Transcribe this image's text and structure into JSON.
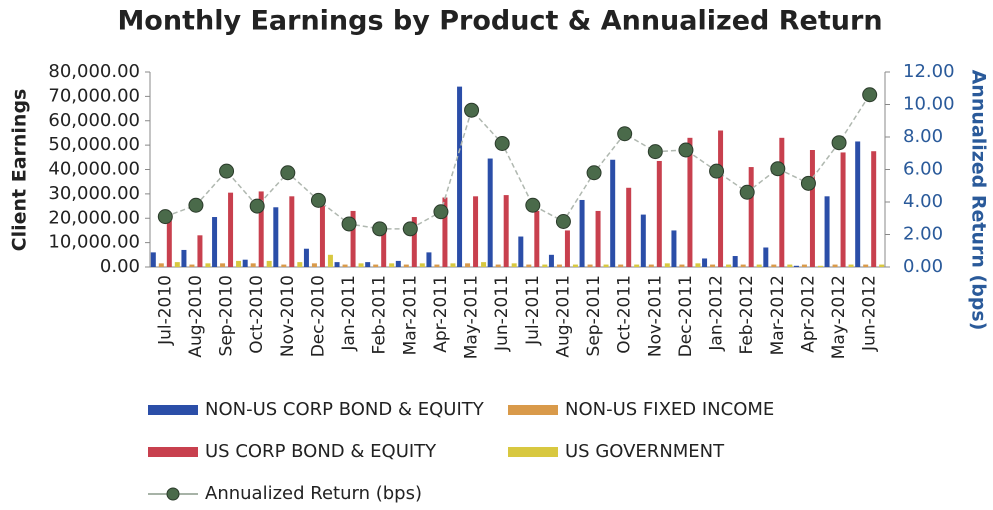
{
  "chart_data": {
    "type": "bar",
    "title": "Monthly Earnings by Product & Annualized Return",
    "y_label": "Client Earnings",
    "y2_label": "Annualized Return (bps)",
    "categories": [
      "Jul-2010",
      "Aug-2010",
      "Sep-2010",
      "Oct-2010",
      "Nov-2010",
      "Dec-2010",
      "Jan-2011",
      "Feb-2011",
      "Mar-2011",
      "Apr-2011",
      "May-2011",
      "Jun-2011",
      "Jul-2011",
      "Aug-2011",
      "Sep-2011",
      "Oct-2011",
      "Nov-2011",
      "Dec-2011",
      "Jan-2012",
      "Feb-2012",
      "Mar-2012",
      "Apr-2012",
      "May-2012",
      "Jun-2012"
    ],
    "series": [
      {
        "name": "NON-US CORP BOND & EQUITY",
        "color": "#2b4ea8",
        "values": [
          6000,
          7000,
          20500,
          3000,
          24500,
          7500,
          2000,
          2000,
          2500,
          6000,
          74000,
          44500,
          12500,
          5000,
          27500,
          44000,
          21500,
          15000,
          3500,
          4500,
          8000,
          500,
          29000,
          51500
        ]
      },
      {
        "name": "NON-US FIXED INCOME",
        "color": "#d99a4a",
        "values": [
          1500,
          1000,
          1500,
          1500,
          1000,
          1500,
          1000,
          1000,
          1000,
          1000,
          1500,
          1000,
          1000,
          1000,
          1000,
          1000,
          1000,
          1000,
          1000,
          1000,
          1000,
          1000,
          1000,
          1000
        ]
      },
      {
        "name": "US CORP BOND & EQUITY",
        "color": "#c8404e",
        "values": [
          19000,
          13000,
          30500,
          31000,
          29000,
          27000,
          23000,
          16000,
          20500,
          28500,
          29000,
          29500,
          23000,
          15000,
          23000,
          32500,
          43500,
          53000,
          56000,
          41000,
          53000,
          48000,
          47000,
          47500
        ]
      },
      {
        "name": "US GOVERNMENT",
        "color": "#d8c840",
        "values": [
          2000,
          1500,
          2500,
          2500,
          2000,
          5000,
          1500,
          1500,
          1500,
          1500,
          2000,
          1500,
          1000,
          1000,
          1000,
          1000,
          1500,
          1500,
          1000,
          1000,
          1000,
          500,
          1000,
          1000
        ]
      },
      {
        "name": "Annualized Return (bps)",
        "color": "#4a6a4a",
        "type": "line",
        "axis": "y2",
        "values": [
          3.1,
          3.8,
          5.9,
          3.75,
          5.8,
          4.1,
          2.65,
          2.35,
          2.35,
          3.4,
          9.65,
          7.6,
          3.8,
          2.8,
          5.8,
          8.2,
          7.1,
          7.2,
          5.9,
          4.6,
          6.05,
          5.15,
          7.65,
          10.6
        ]
      }
    ],
    "ylim": [
      0,
      80000
    ],
    "yticks": [
      {
        "value": 0,
        "label": "0.00"
      },
      {
        "value": 10000,
        "label": "10,000.00"
      },
      {
        "value": 20000,
        "label": "20,000.00"
      },
      {
        "value": 30000,
        "label": "30,000.00"
      },
      {
        "value": 40000,
        "label": "40,000.00"
      },
      {
        "value": 50000,
        "label": "50,000.00"
      },
      {
        "value": 60000,
        "label": "60,000.00"
      },
      {
        "value": 70000,
        "label": "70,000.00"
      },
      {
        "value": 80000,
        "label": "80,000.00"
      }
    ],
    "y2lim": [
      0,
      12
    ],
    "y2ticks": [
      {
        "value": 0,
        "label": "0.00"
      },
      {
        "value": 2,
        "label": "2.00"
      },
      {
        "value": 4,
        "label": "4.00"
      },
      {
        "value": 6,
        "label": "6.00"
      },
      {
        "value": 8,
        "label": "8.00"
      },
      {
        "value": 10,
        "label": "10.00"
      },
      {
        "value": 12,
        "label": "12.00"
      }
    ]
  }
}
